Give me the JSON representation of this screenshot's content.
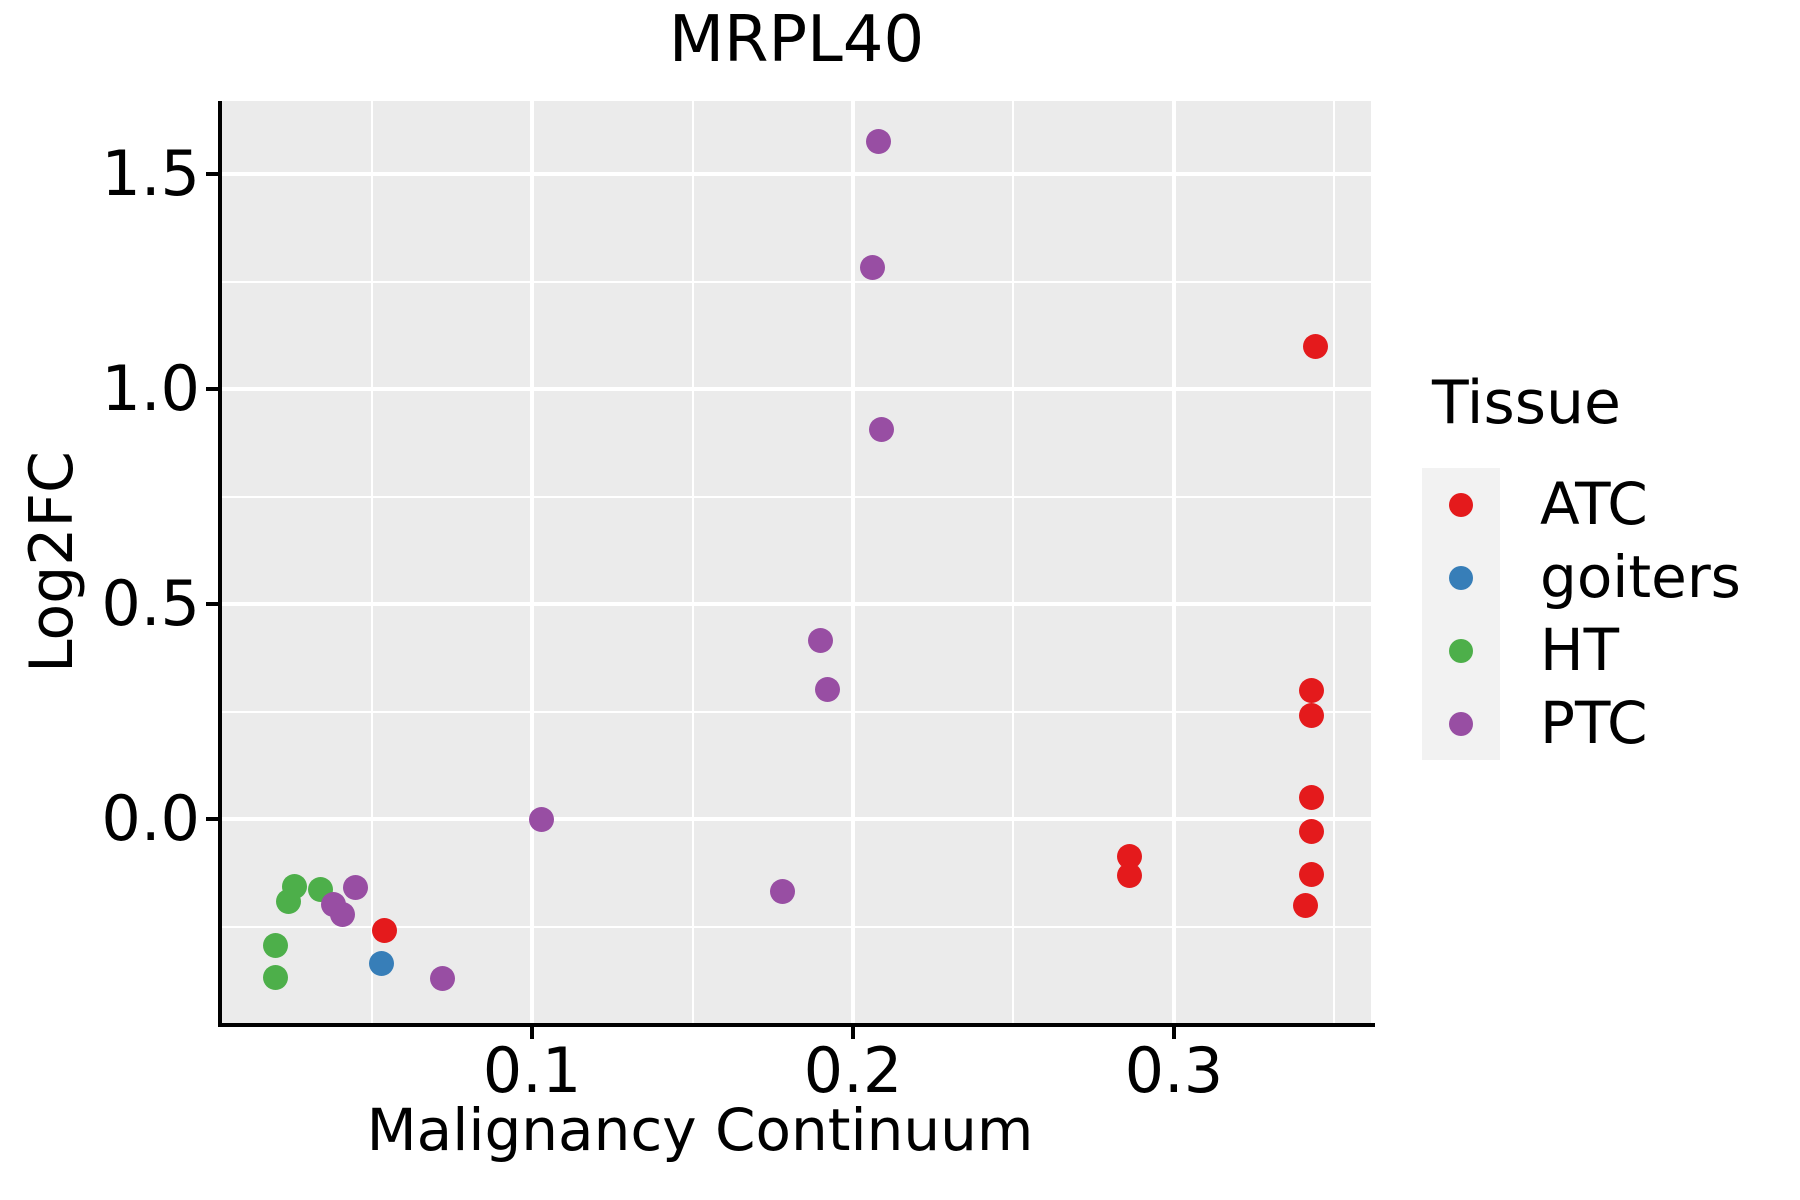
{
  "chart_data": {
    "type": "scatter",
    "title": "MRPL40",
    "xlabel": "Malignancy Continuum",
    "ylabel": "Log2FC",
    "legend_title": "Tissue",
    "legend_position": "right",
    "grid": "on",
    "panel_background": "#EBEBEB",
    "legend_key_background": "#F2F2F2",
    "gridline_color": "#FFFFFF",
    "axis_color": "#000000",
    "xlim": [
      0.0034,
      0.3614
    ],
    "ylim": [
      -0.4744,
      1.67
    ],
    "x_ticks": [
      {
        "value": 0.1,
        "label": "0.1"
      },
      {
        "value": 0.2,
        "label": "0.2"
      },
      {
        "value": 0.3,
        "label": "0.3"
      }
    ],
    "y_ticks": [
      {
        "value": 0.0,
        "label": "0.0"
      },
      {
        "value": 0.5,
        "label": "0.5"
      },
      {
        "value": 1.0,
        "label": "1.0"
      },
      {
        "value": 1.5,
        "label": "1.5"
      }
    ],
    "x_minor_ticks": [
      0.05,
      0.15,
      0.25,
      0.35
    ],
    "y_minor_ticks": [
      -0.25,
      0.25,
      0.75,
      1.25
    ],
    "series": [
      {
        "name": "ATC",
        "color": "#E41A1C",
        "points": [
          [
            0.344,
            1.1
          ],
          [
            0.343,
            0.3
          ],
          [
            0.343,
            0.24
          ],
          [
            0.343,
            0.05
          ],
          [
            0.343,
            -0.03
          ],
          [
            0.343,
            -0.13
          ],
          [
            0.341,
            -0.2
          ],
          [
            0.286,
            -0.086
          ],
          [
            0.286,
            -0.131
          ],
          [
            0.054,
            -0.26
          ]
        ]
      },
      {
        "name": "goiters",
        "color": "#377EB8",
        "points": [
          [
            0.053,
            -0.335
          ]
        ]
      },
      {
        "name": "HT",
        "color": "#4DAF4A",
        "points": [
          [
            0.026,
            -0.156
          ],
          [
            0.024,
            -0.191
          ],
          [
            0.034,
            -0.163
          ],
          [
            0.02,
            -0.293
          ],
          [
            0.02,
            -0.369
          ]
        ]
      },
      {
        "name": "PTC",
        "color": "#984EA3",
        "points": [
          [
            0.045,
            -0.16
          ],
          [
            0.038,
            -0.198
          ],
          [
            0.041,
            -0.221
          ],
          [
            0.072,
            -0.37
          ],
          [
            0.103,
            0.0
          ],
          [
            0.178,
            -0.169
          ],
          [
            0.208,
            1.575
          ],
          [
            0.206,
            1.283
          ],
          [
            0.209,
            0.906
          ],
          [
            0.19,
            0.416
          ],
          [
            0.192,
            0.302
          ]
        ]
      }
    ]
  }
}
